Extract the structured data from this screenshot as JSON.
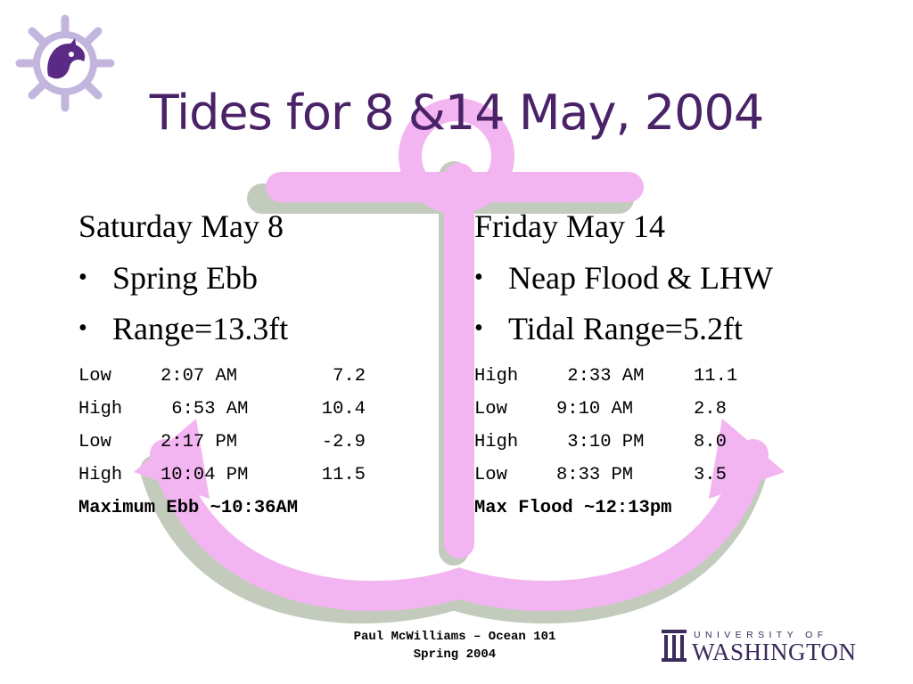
{
  "slide": {
    "title": "Tides for 8 &14 May, 2004",
    "left": {
      "heading": "Saturday May 8",
      "bullets": [
        "Spring Ebb",
        "Range=13.3ft"
      ],
      "tides": [
        {
          "type": "Low",
          "time": "2:07 AM",
          "height": "7.2"
        },
        {
          "type": "High",
          "time": " 6:53 AM",
          "height": "10.4"
        },
        {
          "type": "Low",
          "time": "2:17 PM",
          "height": "-2.9"
        },
        {
          "type": "High",
          "time": "10:04 PM",
          "height": "11.5"
        }
      ],
      "emphasis": "Maximum Ebb ~10:36AM"
    },
    "right": {
      "heading": "Friday May 14",
      "bullets": [
        "Neap Flood & LHW",
        "Tidal Range=5.2ft"
      ],
      "tides": [
        {
          "type": "High",
          "time": " 2:33 AM",
          "height": "11.1"
        },
        {
          "type": "Low",
          "time": "9:10 AM",
          "height": "2.8"
        },
        {
          "type": "High",
          "time": " 3:10 PM",
          "height": "8.0"
        },
        {
          "type": "Low",
          "time": "8:33 PM",
          "height": "3.5"
        }
      ],
      "emphasis": "Max Flood ~12:13pm"
    },
    "footer": {
      "line1": "Paul McWilliams – Ocean  101",
      "line2": "Spring 2004"
    },
    "logo": {
      "top": "UNIVERSITY OF",
      "bottom": "WASHINGTON"
    },
    "colors": {
      "title": "#4a2268",
      "anchor_pink": "#f0a8ee",
      "anchor_shadow": "#b8c0b0",
      "emblem": "#b8a8d8"
    },
    "icons": [
      "ship-wheel-husky-emblem-icon",
      "anchor-background-icon",
      "uw-w-logo-icon"
    ]
  }
}
